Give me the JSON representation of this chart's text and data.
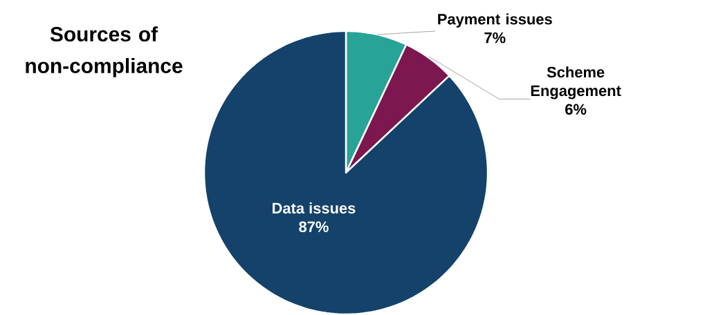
{
  "chart_data": {
    "type": "pie",
    "title": "Sources of non-compliance",
    "categories": [
      "Payment issues",
      "Scheme Engagement",
      "Data issues"
    ],
    "values": [
      7,
      6,
      87
    ],
    "value_labels": [
      "7%",
      "6%",
      "87%"
    ],
    "colors": [
      "#27a397",
      "#7c1750",
      "#14426a"
    ]
  }
}
